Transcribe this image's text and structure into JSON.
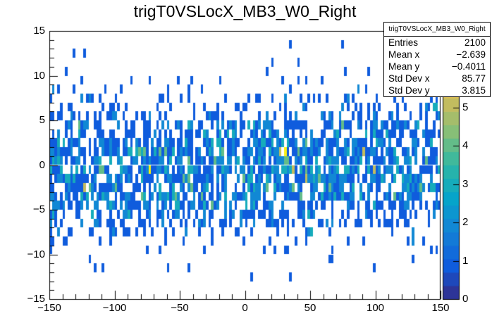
{
  "title": "trigT0VSLocX_MB3_W0_Right",
  "colors": {
    "background": "#ffffff",
    "frame_line": "#000000",
    "text": "#000000"
  },
  "stats_box": {
    "title": "trigT0VSLocX_MB3_W0_Right",
    "rows": [
      {
        "label": "Entries",
        "value": "2100"
      },
      {
        "label": "Mean x",
        "value": "−2.639"
      },
      {
        "label": "Mean y",
        "value": "−0.4011"
      },
      {
        "label": "Std Dev x",
        "value": "85.77"
      },
      {
        "label": "Std Dev y",
        "value": "3.815"
      }
    ]
  },
  "chart_data": {
    "type": "heatmap",
    "title": "trigT0VSLocX_MB3_W0_Right",
    "x_axis": {
      "min": -150,
      "max": 150,
      "major_ticks": [
        -150,
        -100,
        -50,
        0,
        50,
        100,
        150
      ],
      "tick_labels": [
        "−150",
        "−100",
        "−50",
        "0",
        "50",
        "100",
        "150"
      ],
      "minor_step": 10
    },
    "y_axis": {
      "min": -15,
      "max": 15,
      "major_ticks": [
        -15,
        -10,
        -5,
        0,
        5,
        10,
        15
      ],
      "tick_labels": [
        "−15",
        "−10",
        "−5",
        "0",
        "5",
        "10",
        "15"
      ],
      "minor_step": 1
    },
    "z_axis": {
      "min": 0,
      "max": 7,
      "tick_values": [
        0,
        1,
        2,
        3,
        4,
        5
      ],
      "tick_labels": [
        "0",
        "1",
        "2",
        "3",
        "4",
        "5"
      ]
    },
    "bins": {
      "nx": 150,
      "x_width": 2,
      "ny": 30,
      "y_width": 1
    },
    "entries": 2100,
    "stats": {
      "mean_x": -2.639,
      "mean_y": -0.4011,
      "std_dev_x": 85.77,
      "std_dev_y": 3.815
    },
    "distribution": {
      "x": {
        "type": "uniform",
        "min": -150,
        "max": 150
      },
      "y": {
        "type": "gaussian",
        "mean": -0.4011,
        "sigma": 3.815,
        "clip": [
          -15,
          15
        ]
      }
    },
    "grid": false,
    "legend_position": "right-palette-bar",
    "palette": {
      "name": "kBird",
      "contours": 20,
      "stops": [
        "#352A87",
        "#0F5CDD",
        "#1481D6",
        "#06A4CA",
        "#2EB7A4",
        "#87BF77",
        "#D1BB59",
        "#FEC832",
        "#F9FB0D"
      ]
    }
  }
}
